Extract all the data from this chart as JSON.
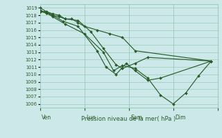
{
  "xlabel": "Pression niveau de la mer( hPa )",
  "background_color": "#cce8e8",
  "grid_color": "#99ccbb",
  "line_color": "#2a5c2a",
  "ylim": [
    1005.5,
    1019.5
  ],
  "ytick_vals": [
    1006,
    1007,
    1008,
    1009,
    1010,
    1011,
    1012,
    1013,
    1014,
    1015,
    1016,
    1017,
    1018,
    1019
  ],
  "day_x": [
    0,
    3.5,
    7.0,
    10.5,
    14.0
  ],
  "day_labels": [
    "Ven",
    "Lun",
    "Sam",
    "Dim"
  ],
  "xlim": [
    0,
    14.0
  ],
  "series_x": [
    [
      0.0,
      0.5,
      1.0,
      1.5,
      2.0,
      2.5,
      3.0,
      3.5,
      4.5,
      5.5,
      6.5,
      7.5,
      13.5
    ],
    [
      0.0,
      0.5,
      1.0,
      1.5,
      2.0,
      3.0,
      4.0,
      5.0,
      6.0,
      6.5,
      7.5,
      8.5,
      13.5
    ],
    [
      0.0,
      0.5,
      1.0,
      1.8,
      3.0,
      4.5,
      5.2,
      6.0,
      6.8,
      7.5,
      8.5,
      9.5,
      13.5
    ],
    [
      0.0,
      0.5,
      1.0,
      2.0,
      3.5,
      5.0,
      5.8,
      6.5,
      7.5,
      8.5,
      9.5,
      10.5,
      11.5,
      12.5,
      13.5
    ]
  ],
  "series_y": [
    [
      1018.5,
      1018.5,
      1018.2,
      1018.0,
      1017.5,
      1017.5,
      1017.0,
      1016.5,
      1016.0,
      1015.5,
      1015.0,
      1013.2,
      1011.8
    ],
    [
      1018.5,
      1018.3,
      1018.0,
      1017.8,
      1017.5,
      1017.3,
      1015.8,
      1013.5,
      1011.3,
      1010.8,
      1011.5,
      1012.3,
      1011.8
    ],
    [
      1019.0,
      1018.5,
      1018.0,
      1017.2,
      1016.5,
      1013.2,
      1011.0,
      1010.0,
      1011.5,
      1010.5,
      1009.2,
      1009.5,
      1011.8
    ],
    [
      1018.7,
      1018.3,
      1017.8,
      1016.8,
      1015.5,
      1013.0,
      1010.5,
      1011.2,
      1010.8,
      1009.5,
      1007.2,
      1006.0,
      1007.5,
      1009.8,
      1011.8
    ]
  ]
}
